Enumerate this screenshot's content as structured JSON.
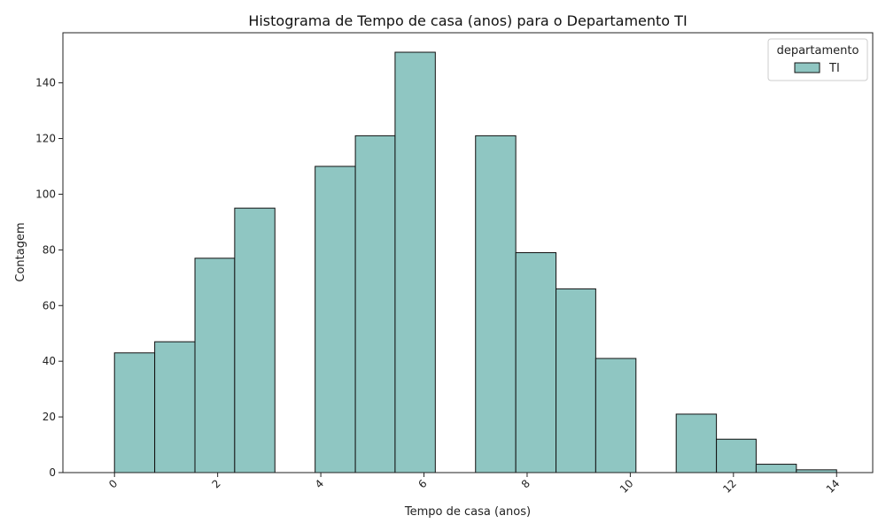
{
  "chart_data": {
    "type": "bar",
    "title": "Histograma de Tempo de casa (anos) para o Departamento TI",
    "xlabel": "Tempo de casa (anos)",
    "ylabel": "Contagem",
    "xlim": [
      -1.0,
      14.7
    ],
    "ylim": [
      0,
      158
    ],
    "x_ticks": [
      0,
      2,
      4,
      6,
      8,
      10,
      12,
      14
    ],
    "y_ticks": [
      0,
      20,
      40,
      60,
      80,
      100,
      120,
      140
    ],
    "bins": [
      {
        "start": 0.0,
        "end": 0.78,
        "count": 43
      },
      {
        "start": 0.78,
        "end": 1.56,
        "count": 47
      },
      {
        "start": 1.56,
        "end": 2.33,
        "count": 77
      },
      {
        "start": 2.33,
        "end": 3.11,
        "count": 95
      },
      {
        "start": 3.11,
        "end": 3.89,
        "count": 0
      },
      {
        "start": 3.89,
        "end": 4.67,
        "count": 110
      },
      {
        "start": 4.67,
        "end": 5.44,
        "count": 121
      },
      {
        "start": 5.44,
        "end": 6.22,
        "count": 151
      },
      {
        "start": 6.22,
        "end": 7.0,
        "count": 0
      },
      {
        "start": 7.0,
        "end": 7.78,
        "count": 121
      },
      {
        "start": 7.78,
        "end": 8.56,
        "count": 79
      },
      {
        "start": 8.56,
        "end": 9.33,
        "count": 66
      },
      {
        "start": 9.33,
        "end": 10.11,
        "count": 41
      },
      {
        "start": 10.11,
        "end": 10.89,
        "count": 0
      },
      {
        "start": 10.89,
        "end": 11.67,
        "count": 21
      },
      {
        "start": 11.67,
        "end": 12.44,
        "count": 12
      },
      {
        "start": 12.44,
        "end": 13.22,
        "count": 3
      },
      {
        "start": 13.22,
        "end": 14.0,
        "count": 1
      }
    ],
    "grid": false,
    "legend": {
      "title": "departamento",
      "entries": [
        {
          "name": "TI",
          "color": "#8fc6c2"
        }
      ],
      "placement": "top-right"
    },
    "bar_color": "#8fc6c2",
    "edge_color": "#111111"
  }
}
